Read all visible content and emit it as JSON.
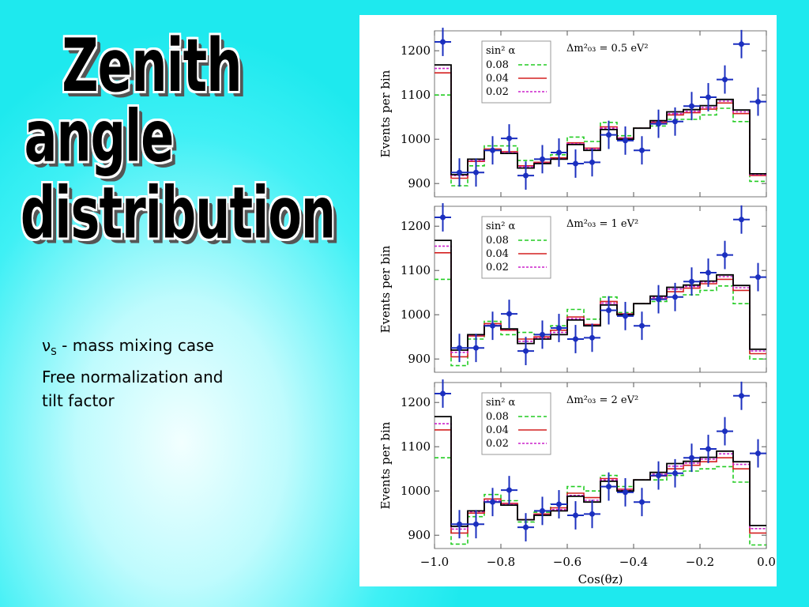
{
  "title": {
    "line1": "Zenith",
    "line2": "angle",
    "line3": "distribution"
  },
  "notes": {
    "line1_symbol": "ν",
    "line1_sub": "S",
    "line1_text": " - mass mixing case",
    "line2": "Free normalization and  tilt factor"
  },
  "colors": {
    "background": "#22eaf0",
    "data_points": "#1b2fbf",
    "s008": "#22cc22",
    "s004": "#d42020",
    "s002": "#cc22cc",
    "nominal": "#000000"
  },
  "chart_data": [
    {
      "type": "line",
      "annotation": "Δm²₀₃ = 0.5 eV²",
      "legend_title": "sin² α",
      "legend_position": "top-left",
      "ylabel": "Events per bin",
      "xlabel": "",
      "xlim": [
        -1.0,
        0.0
      ],
      "ylim": [
        870,
        1245
      ],
      "yticks": [
        900,
        1000,
        1100,
        1200
      ],
      "x_edges": [
        -1.0,
        -0.95,
        -0.9,
        -0.85,
        -0.8,
        -0.75,
        -0.7,
        -0.65,
        -0.6,
        -0.55,
        -0.5,
        -0.45,
        -0.4,
        -0.35,
        -0.3,
        -0.25,
        -0.2,
        -0.15,
        -0.1,
        -0.05,
        0.0
      ],
      "data_points": {
        "x": [
          -0.975,
          -0.925,
          -0.875,
          -0.825,
          -0.775,
          -0.725,
          -0.675,
          -0.625,
          -0.575,
          -0.525,
          -0.475,
          -0.425,
          -0.375,
          -0.325,
          -0.275,
          -0.225,
          -0.175,
          -0.125,
          -0.075,
          -0.025
        ],
        "y": [
          1220,
          925,
          925,
          975,
          1002,
          918,
          955,
          970,
          945,
          948,
          1010,
          997,
          975,
          1035,
          1040,
          1075,
          1095,
          1135,
          1215,
          1085
        ],
        "yerr": 32
      },
      "series": [
        {
          "name": "0.08",
          "values": [
            1100,
            895,
            940,
            985,
            985,
            952,
            955,
            965,
            1005,
            995,
            1038,
            1008,
            1025,
            1030,
            1045,
            1045,
            1055,
            1070,
            1040,
            905
          ]
        },
        {
          "name": "0.04",
          "values": [
            1150,
            912,
            950,
            978,
            972,
            940,
            948,
            958,
            992,
            980,
            1028,
            1003,
            1025,
            1038,
            1055,
            1060,
            1068,
            1082,
            1058,
            918
          ]
        },
        {
          "name": "0.02",
          "values": [
            1160,
            918,
            952,
            975,
            970,
            938,
            946,
            956,
            990,
            978,
            1025,
            1002,
            1025,
            1040,
            1058,
            1063,
            1072,
            1086,
            1062,
            920
          ]
        },
        {
          "nominal": true,
          "values": [
            1168,
            920,
            955,
            975,
            968,
            935,
            945,
            955,
            988,
            975,
            1022,
            1000,
            1025,
            1042,
            1062,
            1067,
            1076,
            1090,
            1066,
            922
          ]
        }
      ]
    },
    {
      "type": "line",
      "annotation": "Δm²₀₃ = 1 eV²",
      "legend_title": "sin² α",
      "legend_position": "top-left",
      "ylabel": "Events per bin",
      "xlabel": "",
      "xlim": [
        -1.0,
        0.0
      ],
      "ylim": [
        870,
        1245
      ],
      "yticks": [
        900,
        1000,
        1100,
        1200
      ],
      "x_edges": [
        -1.0,
        -0.95,
        -0.9,
        -0.85,
        -0.8,
        -0.75,
        -0.7,
        -0.65,
        -0.6,
        -0.55,
        -0.5,
        -0.45,
        -0.4,
        -0.35,
        -0.3,
        -0.25,
        -0.2,
        -0.15,
        -0.1,
        -0.05,
        0.0
      ],
      "data_points": {
        "x": [
          -0.975,
          -0.925,
          -0.875,
          -0.825,
          -0.775,
          -0.725,
          -0.675,
          -0.625,
          -0.575,
          -0.525,
          -0.475,
          -0.425,
          -0.375,
          -0.325,
          -0.275,
          -0.225,
          -0.175,
          -0.125,
          -0.075,
          -0.025
        ],
        "y": [
          1220,
          925,
          925,
          975,
          1002,
          918,
          955,
          970,
          945,
          948,
          1010,
          997,
          975,
          1035,
          1040,
          1075,
          1095,
          1135,
          1215,
          1085
        ],
        "yerr": 32
      },
      "series": [
        {
          "name": "0.08",
          "values": [
            1080,
            885,
            945,
            985,
            955,
            960,
            955,
            975,
            1012,
            990,
            1040,
            1005,
            1025,
            1030,
            1040,
            1045,
            1055,
            1065,
            1025,
            900
          ]
        },
        {
          "name": "0.04",
          "values": [
            1140,
            905,
            952,
            980,
            965,
            945,
            950,
            965,
            995,
            978,
            1030,
            1002,
            1025,
            1036,
            1052,
            1060,
            1070,
            1080,
            1055,
            912
          ]
        },
        {
          "name": "0.02",
          "values": [
            1155,
            915,
            954,
            976,
            967,
            940,
            947,
            960,
            991,
            976,
            1026,
            1001,
            1025,
            1039,
            1058,
            1064,
            1074,
            1086,
            1061,
            918
          ]
        },
        {
          "nominal": true,
          "values": [
            1168,
            920,
            955,
            975,
            968,
            935,
            945,
            955,
            988,
            975,
            1022,
            1000,
            1025,
            1042,
            1062,
            1067,
            1076,
            1090,
            1066,
            922
          ]
        }
      ]
    },
    {
      "type": "line",
      "annotation": "Δm²₀₃ = 2 eV²",
      "legend_title": "sin² α",
      "legend_position": "top-left",
      "ylabel": "Events per bin",
      "xlabel": "Cos(θz)",
      "xlim": [
        -1.0,
        0.0
      ],
      "ylim": [
        870,
        1245
      ],
      "yticks": [
        900,
        1000,
        1100,
        1200
      ],
      "xticks": [
        "−1.0",
        "−0.8",
        "−0.6",
        "−0.4",
        "−0.2",
        "0.0"
      ],
      "x_edges": [
        -1.0,
        -0.95,
        -0.9,
        -0.85,
        -0.8,
        -0.75,
        -0.7,
        -0.65,
        -0.6,
        -0.55,
        -0.5,
        -0.45,
        -0.4,
        -0.35,
        -0.3,
        -0.25,
        -0.2,
        -0.15,
        -0.1,
        -0.05,
        0.0
      ],
      "data_points": {
        "x": [
          -0.975,
          -0.925,
          -0.875,
          -0.825,
          -0.775,
          -0.725,
          -0.675,
          -0.625,
          -0.575,
          -0.525,
          -0.475,
          -0.425,
          -0.375,
          -0.325,
          -0.275,
          -0.225,
          -0.175,
          -0.125,
          -0.075,
          -0.025
        ],
        "y": [
          1220,
          925,
          925,
          975,
          1002,
          918,
          955,
          970,
          945,
          948,
          1010,
          997,
          975,
          1035,
          1040,
          1075,
          1095,
          1135,
          1215,
          1085
        ],
        "yerr": 32
      },
      "series": [
        {
          "name": "0.08",
          "values": [
            1075,
            880,
            942,
            992,
            978,
            930,
            952,
            970,
            1010,
            1000,
            1035,
            1010,
            1025,
            1025,
            1035,
            1045,
            1050,
            1055,
            1020,
            878
          ]
        },
        {
          "name": "0.04",
          "values": [
            1138,
            905,
            950,
            982,
            972,
            935,
            948,
            962,
            995,
            985,
            1028,
            1004,
            1025,
            1034,
            1050,
            1058,
            1066,
            1075,
            1050,
            905
          ]
        },
        {
          "name": "0.02",
          "values": [
            1152,
            914,
            953,
            978,
            970,
            935,
            946,
            958,
            990,
            979,
            1025,
            1002,
            1025,
            1038,
            1056,
            1063,
            1072,
            1084,
            1060,
            915
          ]
        },
        {
          "nominal": true,
          "values": [
            1168,
            920,
            955,
            975,
            968,
            935,
            945,
            955,
            988,
            975,
            1022,
            1000,
            1025,
            1042,
            1062,
            1067,
            1076,
            1090,
            1066,
            922
          ]
        }
      ]
    }
  ]
}
